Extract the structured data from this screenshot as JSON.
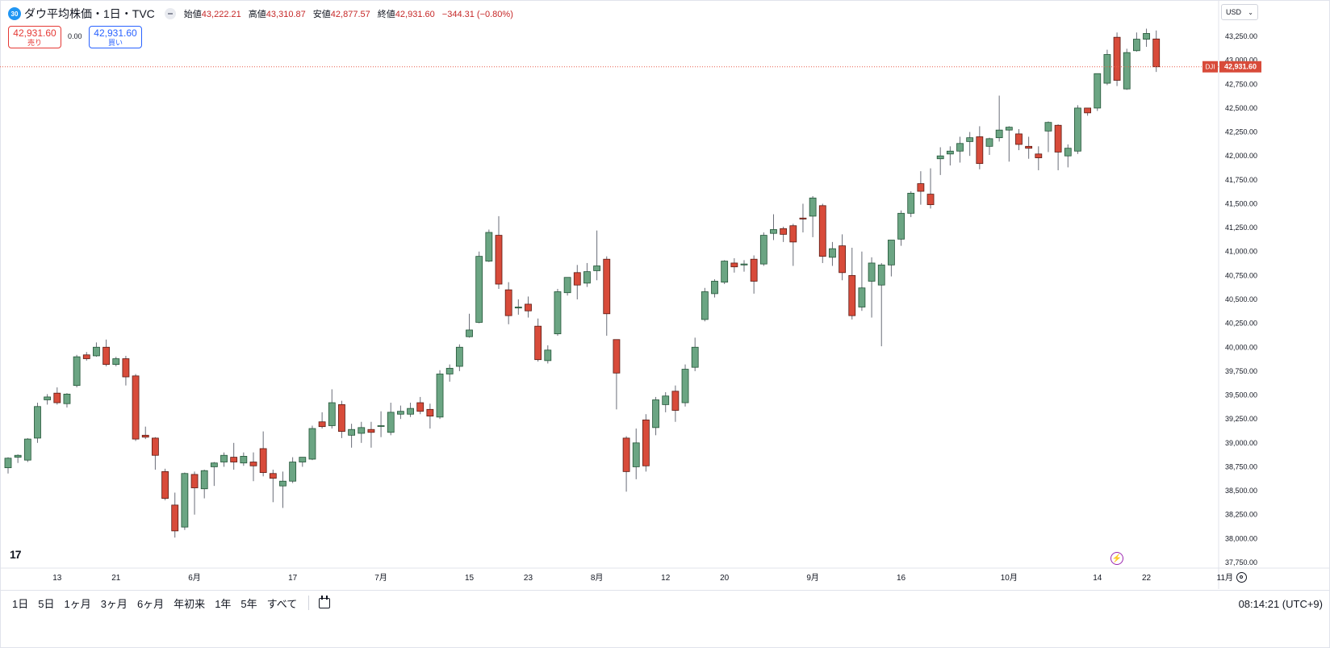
{
  "header": {
    "badge": "30",
    "title": "ダウ平均株価・1日・TVC",
    "open_label": "始値",
    "open": "43,222.21",
    "high_label": "高値",
    "high": "43,310.87",
    "low_label": "安値",
    "low": "42,877.57",
    "close_label": "終値",
    "close": "42,931.60",
    "change": "−344.31 (−0.80%)"
  },
  "trade": {
    "sell_price": "42,931.60",
    "sell_label": "売り",
    "spread": "0.00",
    "buy_price": "42,931.60",
    "buy_label": "買い"
  },
  "currency": "USD",
  "price_label": {
    "symbol": "DJI",
    "value": "42,931.60"
  },
  "timeframes": [
    "1日",
    "5日",
    "1ヶ月",
    "3ヶ月",
    "6ヶ月",
    "年初来",
    "1年",
    "5年",
    "すべて"
  ],
  "clock": "08:14:21 (UTC+9)",
  "logo": "17",
  "colors": {
    "up": "#6ba583",
    "down": "#d84b3a",
    "up_border": "#225437",
    "down_border": "#5b1a13",
    "price_line": "#e85d4a"
  },
  "icons": [
    "tradingview-logo-icon",
    "flash-icon",
    "calendar-range-icon",
    "settings-gear-icon",
    "chevron-down-icon",
    "eye-icon"
  ],
  "chart_data": {
    "type": "candlestick",
    "symbol": "DJI",
    "ylim": [
      37750,
      43250
    ],
    "yticks": [
      "37,750.00",
      "38,000.00",
      "38,250.00",
      "38,500.00",
      "38,750.00",
      "39,000.00",
      "39,250.00",
      "39,500.00",
      "39,750.00",
      "40,000.00",
      "40,250.00",
      "40,500.00",
      "40,750.00",
      "41,000.00",
      "41,250.00",
      "41,500.00",
      "41,750.00",
      "42,000.00",
      "42,250.00",
      "42,500.00",
      "42,750.00",
      "43,000.00",
      "43,250.00"
    ],
    "xticks": [
      {
        "index": 5,
        "label": "13"
      },
      {
        "index": 11,
        "label": "21"
      },
      {
        "index": 19,
        "label": "6月"
      },
      {
        "index": 29,
        "label": "17"
      },
      {
        "index": 38,
        "label": "7月"
      },
      {
        "index": 47,
        "label": "15"
      },
      {
        "index": 53,
        "label": "23"
      },
      {
        "index": 60,
        "label": "8月"
      },
      {
        "index": 67,
        "label": "12"
      },
      {
        "index": 73,
        "label": "20"
      },
      {
        "index": 82,
        "label": "9月"
      },
      {
        "index": 91,
        "label": "16"
      },
      {
        "index": 102,
        "label": "10月"
      },
      {
        "index": 111,
        "label": "14"
      },
      {
        "index": 116,
        "label": "22"
      },
      {
        "index": 124,
        "label": "11月"
      }
    ],
    "last_price": 42931.6,
    "candles": [
      [
        38740,
        38850,
        38680,
        38840
      ],
      [
        38850,
        38880,
        38790,
        38870
      ],
      [
        38820,
        39050,
        38800,
        39040
      ],
      [
        39050,
        39420,
        39000,
        39380
      ],
      [
        39450,
        39510,
        39400,
        39480
      ],
      [
        39520,
        39580,
        39400,
        39420
      ],
      [
        39410,
        39520,
        39370,
        39510
      ],
      [
        39600,
        39920,
        39580,
        39900
      ],
      [
        39920,
        39950,
        39860,
        39880
      ],
      [
        39910,
        40050,
        39900,
        40000
      ],
      [
        40000,
        40080,
        39800,
        39820
      ],
      [
        39820,
        39900,
        39800,
        39880
      ],
      [
        39880,
        39910,
        39600,
        39690
      ],
      [
        39700,
        39720,
        39020,
        39040
      ],
      [
        39080,
        39170,
        39040,
        39060
      ],
      [
        39050,
        39060,
        38720,
        38870
      ],
      [
        38700,
        38730,
        38400,
        38420
      ],
      [
        38350,
        38480,
        38010,
        38080
      ],
      [
        38120,
        38690,
        38090,
        38680
      ],
      [
        38670,
        38700,
        38250,
        38530
      ],
      [
        38520,
        38720,
        38420,
        38710
      ],
      [
        38750,
        38800,
        38550,
        38790
      ],
      [
        38800,
        38900,
        38750,
        38870
      ],
      [
        38850,
        39000,
        38720,
        38800
      ],
      [
        38790,
        38900,
        38760,
        38860
      ],
      [
        38800,
        38900,
        38600,
        38760
      ],
      [
        38940,
        39120,
        38650,
        38690
      ],
      [
        38680,
        38720,
        38380,
        38630
      ],
      [
        38550,
        38700,
        38320,
        38600
      ],
      [
        38600,
        38850,
        38580,
        38800
      ],
      [
        38800,
        38850,
        38750,
        38850
      ],
      [
        38830,
        39180,
        38820,
        39150
      ],
      [
        39220,
        39320,
        39150,
        39170
      ],
      [
        39180,
        39560,
        39150,
        39420
      ],
      [
        39400,
        39440,
        39050,
        39120
      ],
      [
        39080,
        39200,
        38950,
        39140
      ],
      [
        39100,
        39220,
        39000,
        39160
      ],
      [
        39140,
        39220,
        38950,
        39110
      ],
      [
        39180,
        39330,
        39060,
        39180
      ],
      [
        39110,
        39420,
        39080,
        39320
      ],
      [
        39300,
        39390,
        39250,
        39330
      ],
      [
        39300,
        39420,
        39270,
        39360
      ],
      [
        39420,
        39480,
        39300,
        39330
      ],
      [
        39350,
        39410,
        39150,
        39280
      ],
      [
        39270,
        39760,
        39250,
        39720
      ],
      [
        39720,
        39820,
        39640,
        39780
      ],
      [
        39800,
        40030,
        39750,
        40000
      ],
      [
        40110,
        40350,
        40100,
        40180
      ],
      [
        40260,
        41000,
        40250,
        40950
      ],
      [
        40900,
        41230,
        40890,
        41200
      ],
      [
        41170,
        41370,
        40610,
        40660
      ],
      [
        40600,
        40680,
        40240,
        40330
      ],
      [
        40410,
        40500,
        40340,
        40420
      ],
      [
        40450,
        40530,
        40310,
        40380
      ],
      [
        40220,
        40300,
        39850,
        39870
      ],
      [
        39860,
        40020,
        39830,
        39970
      ],
      [
        40140,
        40610,
        40120,
        40580
      ],
      [
        40570,
        40720,
        40540,
        40730
      ],
      [
        40780,
        40860,
        40500,
        40650
      ],
      [
        40670,
        40880,
        40630,
        40790
      ],
      [
        40800,
        41220,
        40700,
        40850
      ],
      [
        40920,
        40950,
        40120,
        40350
      ],
      [
        40080,
        40080,
        39350,
        39730
      ],
      [
        39050,
        39070,
        38490,
        38700
      ],
      [
        38750,
        39150,
        38620,
        39000
      ],
      [
        39240,
        39300,
        38700,
        38760
      ],
      [
        39160,
        39480,
        39080,
        39450
      ],
      [
        39400,
        39530,
        39320,
        39490
      ],
      [
        39540,
        39600,
        39220,
        39340
      ],
      [
        39420,
        39820,
        39380,
        39770
      ],
      [
        39790,
        40100,
        39750,
        40000
      ],
      [
        40290,
        40620,
        40270,
        40580
      ],
      [
        40560,
        40710,
        40520,
        40690
      ],
      [
        40680,
        40910,
        40660,
        40900
      ],
      [
        40880,
        40930,
        40780,
        40840
      ],
      [
        40860,
        40910,
        40790,
        40870
      ],
      [
        40920,
        40960,
        40560,
        40690
      ],
      [
        40870,
        41200,
        40850,
        41170
      ],
      [
        41190,
        41390,
        41120,
        41230
      ],
      [
        41240,
        41260,
        41100,
        41180
      ],
      [
        41270,
        41290,
        40850,
        41100
      ],
      [
        41350,
        41500,
        41200,
        41340
      ],
      [
        41370,
        41580,
        41150,
        41560
      ],
      [
        41480,
        41500,
        40880,
        40950
      ],
      [
        40940,
        41100,
        40850,
        41030
      ],
      [
        41060,
        41180,
        40700,
        40780
      ],
      [
        40750,
        41040,
        40290,
        40330
      ],
      [
        40420,
        41000,
        40380,
        40620
      ],
      [
        40690,
        40940,
        40310,
        40880
      ],
      [
        40650,
        40880,
        40010,
        40860
      ],
      [
        40860,
        41110,
        40740,
        41120
      ],
      [
        41130,
        41430,
        41060,
        41400
      ],
      [
        41400,
        41630,
        41360,
        41610
      ],
      [
        41710,
        41840,
        41490,
        41630
      ],
      [
        41600,
        41870,
        41450,
        41490
      ],
      [
        41970,
        42090,
        41800,
        42000
      ],
      [
        42020,
        42100,
        41900,
        42050
      ],
      [
        42050,
        42200,
        41930,
        42130
      ],
      [
        42150,
        42250,
        42000,
        42190
      ],
      [
        42200,
        42310,
        41860,
        41920
      ],
      [
        42100,
        42190,
        42010,
        42180
      ],
      [
        42190,
        42630,
        42150,
        42270
      ],
      [
        42270,
        42310,
        41940,
        42300
      ],
      [
        42230,
        42280,
        42060,
        42120
      ],
      [
        42100,
        42200,
        41970,
        42080
      ],
      [
        42020,
        42100,
        41850,
        41980
      ],
      [
        42260,
        42360,
        42040,
        42350
      ],
      [
        42320,
        42330,
        41850,
        42040
      ],
      [
        42000,
        42120,
        41880,
        42080
      ],
      [
        42050,
        42530,
        42020,
        42500
      ],
      [
        42500,
        42470,
        42420,
        42450
      ],
      [
        42500,
        42860,
        42470,
        42860
      ],
      [
        42760,
        43110,
        42740,
        43060
      ],
      [
        43240,
        43290,
        42730,
        42790
      ],
      [
        42700,
        43120,
        42690,
        43080
      ],
      [
        43100,
        43290,
        43090,
        43220
      ],
      [
        43220,
        43330,
        43140,
        43280
      ],
      [
        43222.21,
        43310.87,
        42877.57,
        42931.6
      ]
    ]
  }
}
